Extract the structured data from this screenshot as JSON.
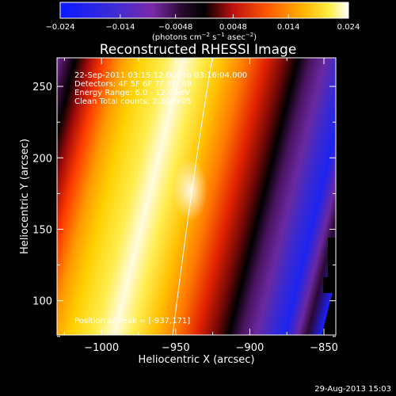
{
  "colorbar": {
    "min": -0.024,
    "max": 0.024,
    "tick_labels": [
      "−0.024",
      "−0.014",
      "−0.0048",
      "0.0048",
      "0.014",
      "0.024"
    ],
    "tick_values": [
      -0.024,
      -0.014,
      -0.0048,
      0.0048,
      0.014,
      0.024
    ],
    "unit_main": "(photons cm",
    "unit_sup1": "−2",
    "unit_mid1": " s",
    "unit_sup2": "−1",
    "unit_mid2": " asec",
    "unit_sup3": "−2",
    "unit_end": ")"
  },
  "chart_data": {
    "type": "heatmap",
    "title": "Reconstructed RHESSI Image",
    "xlabel": "Heliocentric X (arcsec)",
    "ylabel": "Heliocentric Y (arcsec)",
    "xlim": [
      -1030,
      -842
    ],
    "ylim": [
      76,
      270
    ],
    "x_ticks": [
      -1000,
      -950,
      -900,
      -850
    ],
    "x_tick_labels": [
      "−1000",
      "−950",
      "−900",
      "−850"
    ],
    "y_ticks": [
      100,
      150,
      200,
      250
    ],
    "y_tick_labels": [
      "100",
      "150",
      "200",
      "250"
    ],
    "colormap": "RHESSI red-temperature (blue → purple → black → red → orange → yellow → white)",
    "peak": [
      -937,
      171
    ],
    "annotations": {
      "line1": "22-Sep-2011 03:15:12.000 to 03:16:04.000",
      "line2": "Detectors: 4F 5F 6F 7F 8F, A9",
      "line3": "Energy Range: 6.0 - 12.0 keV",
      "line4": "Clean     Total counts: 2.30e+05",
      "peak_label": "Position of Peak = [-937,171]"
    }
  },
  "timestamp": "29-Aug-2013 15:03",
  "colors": {
    "background": "#000000",
    "text": "#ffffff"
  }
}
